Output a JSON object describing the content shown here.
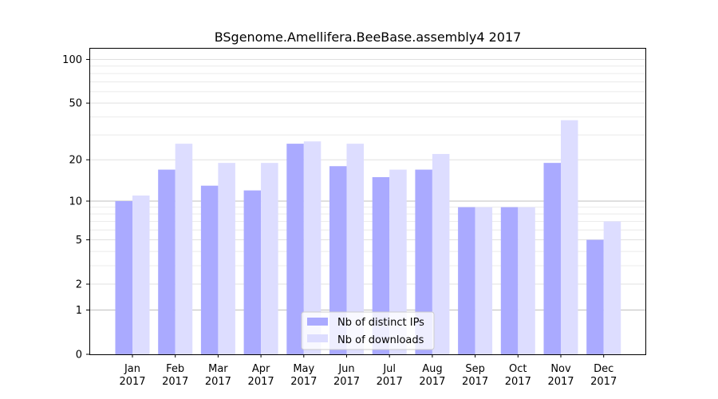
{
  "chart_data": {
    "type": "bar",
    "title": "BSgenome.Amellifera.BeeBase.assembly4 2017",
    "xlabel": "",
    "ylabel": "",
    "yscale": "log1p",
    "ylim": [
      0,
      120
    ],
    "yticks": [
      0,
      1,
      2,
      5,
      10,
      20,
      50,
      100
    ],
    "grid": true,
    "legend_position": "bottom-center",
    "categories": [
      [
        "Jan",
        "2017"
      ],
      [
        "Feb",
        "2017"
      ],
      [
        "Mar",
        "2017"
      ],
      [
        "Apr",
        "2017"
      ],
      [
        "May",
        "2017"
      ],
      [
        "Jun",
        "2017"
      ],
      [
        "Jul",
        "2017"
      ],
      [
        "Aug",
        "2017"
      ],
      [
        "Sep",
        "2017"
      ],
      [
        "Oct",
        "2017"
      ],
      [
        "Nov",
        "2017"
      ],
      [
        "Dec",
        "2017"
      ]
    ],
    "series": [
      {
        "name": "Nb of distinct IPs",
        "color": "#aaaaff",
        "values": [
          10,
          17,
          13,
          12,
          26,
          18,
          15,
          17,
          9,
          9,
          19,
          5
        ]
      },
      {
        "name": "Nb of downloads",
        "color": "#ddddff",
        "values": [
          11,
          26,
          19,
          19,
          27,
          26,
          17,
          22,
          9,
          9,
          38,
          7
        ]
      }
    ]
  }
}
